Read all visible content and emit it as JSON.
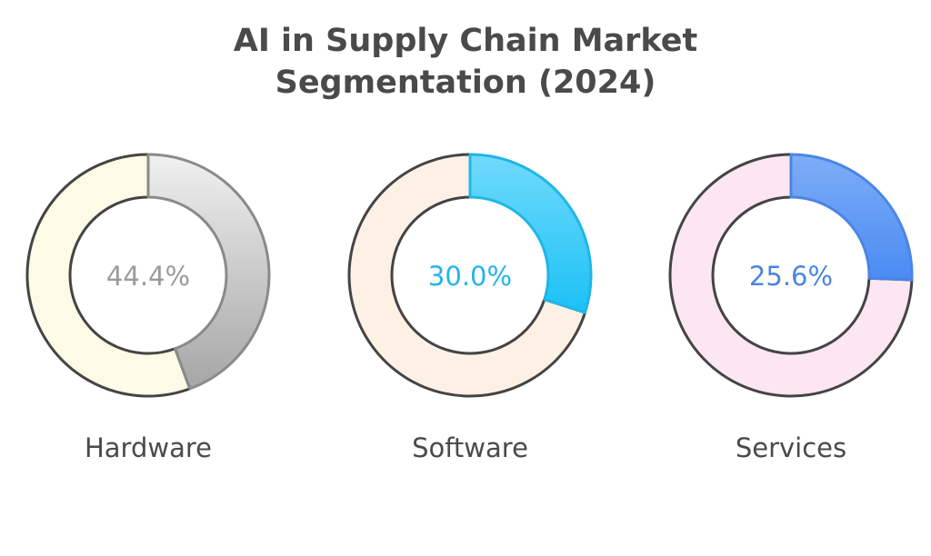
{
  "chart_data": {
    "type": "pie",
    "title_line1": "AI in Supply Chain Market",
    "title_line2": "Segmentation (2024)",
    "segments": [
      {
        "label": "Hardware",
        "value": 44.4,
        "value_label": "44.4%",
        "color_from": "#f0f0f0",
        "color_to": "#a6a6a6",
        "rest_color": "#fdfbe6",
        "stroke": "#8a8a8a",
        "text_color": "#9a9a9a"
      },
      {
        "label": "Software",
        "value": 30.0,
        "value_label": "30.0%",
        "color_from": "#70dafc",
        "color_to": "#1cc1f5",
        "rest_color": "#fdf1e6",
        "stroke": "#1fb6e6",
        "text_color": "#22b5e8"
      },
      {
        "label": "Services",
        "value": 25.6,
        "value_label": "25.6%",
        "color_from": "#7eadf6",
        "color_to": "#4a8bf3",
        "rest_color": "#fce6f2",
        "stroke": "#4a84e6",
        "text_color": "#4a84e6"
      }
    ]
  }
}
